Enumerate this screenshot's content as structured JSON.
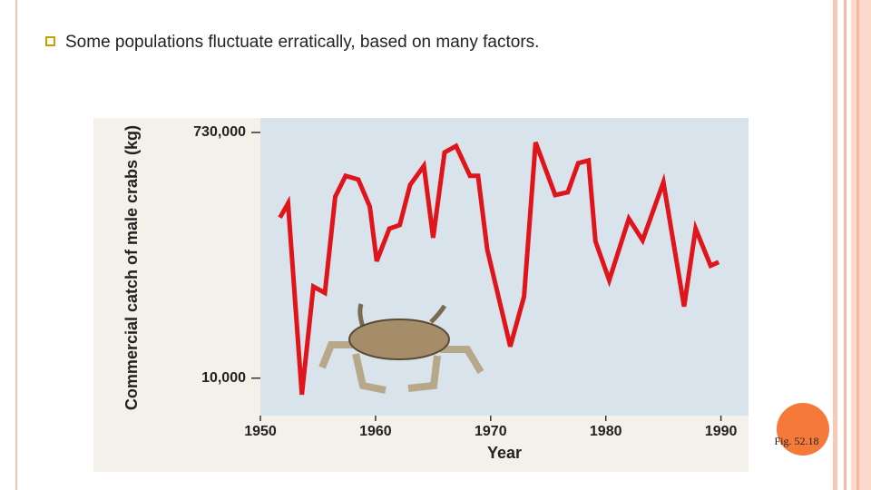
{
  "bullet": "Some populations fluctuate erratically, based on many factors.",
  "caption": "Fig. 52.18",
  "chart_data": {
    "type": "line",
    "x_label": "Year",
    "y_label": "Commercial catch of male crabs (kg)",
    "color": "#e0141b",
    "log_y": true,
    "x": [
      1951.7,
      1952.4,
      1953.6,
      1954.6,
      1955.6,
      1956.5,
      1957.4,
      1958.5,
      1959.5,
      1960.1,
      1961.2,
      1962.1,
      1963.0,
      1964.2,
      1965.0,
      1966.0,
      1967.0,
      1968.2,
      1968.9,
      1969.7,
      1971.7,
      1972.9,
      1973.9,
      1975.6,
      1976.7,
      1977.6,
      1978.5,
      1979.1,
      1980.3,
      1982.0,
      1983.2,
      1985.0,
      1986.8,
      1987.8,
      1989.1,
      1989.8
    ],
    "values": [
      165000,
      212000,
      7500,
      49500,
      44300,
      238000,
      342000,
      321000,
      200000,
      77100,
      136000,
      145000,
      292000,
      407000,
      116000,
      516000,
      576000,
      342000,
      342000,
      94800,
      17400,
      41600,
      614000,
      245000,
      257000,
      427000,
      448000,
      109000,
      55300,
      162000,
      111000,
      306000,
      34900,
      136000,
      71300,
      75900
    ],
    "xlim": [
      1950,
      1992
    ],
    "xticks": [
      1950,
      1960,
      1970,
      1980,
      1990
    ],
    "ylim": [
      5200,
      940000
    ],
    "yticks": [
      {
        "value": 10000,
        "label": "10,000"
      },
      {
        "value": 730000,
        "label": "730,000"
      }
    ]
  }
}
